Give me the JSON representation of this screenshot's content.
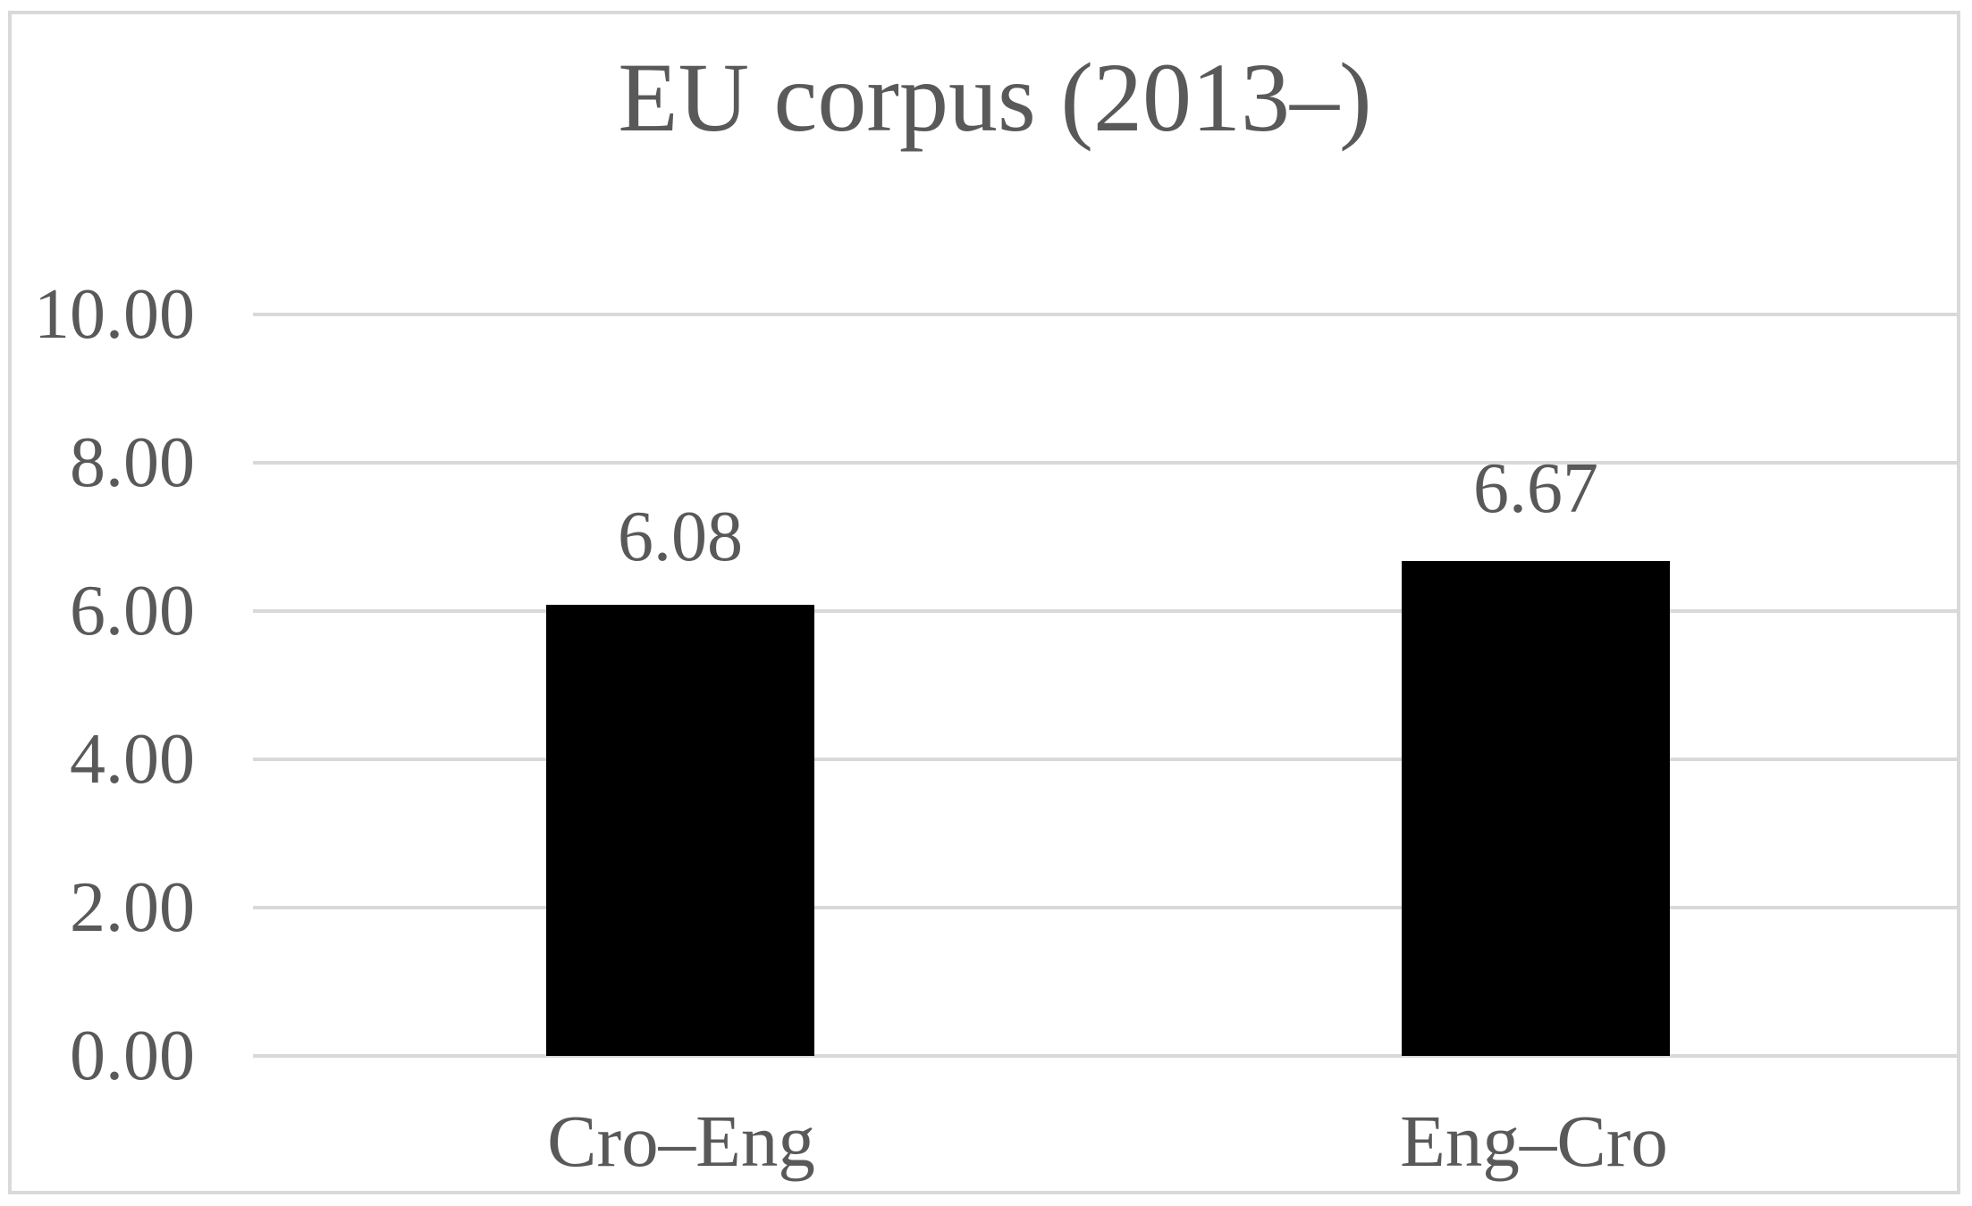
{
  "chart_data": {
    "type": "bar",
    "title": "EU corpus (2013–)",
    "categories": [
      "Cro–Eng",
      "Eng–Cro"
    ],
    "values": [
      6.08,
      6.67
    ],
    "data_labels": [
      "6.08",
      "6.67"
    ],
    "series": [
      {
        "name": "EU corpus (2013–)",
        "values": [
          6.08,
          6.67
        ]
      }
    ],
    "xlabel": "",
    "ylabel": "",
    "ylim": [
      0,
      10
    ],
    "y_tick_step": 2,
    "y_ticks": [
      "10.00",
      "8.00",
      "6.00",
      "4.00",
      "2.00",
      "0.00"
    ],
    "grid": true,
    "legend": "none",
    "colors": {
      "bar": "#000000",
      "text": "#595959",
      "gridline": "#d9d9d9",
      "frame_border": "#d9d9d9",
      "background": "#ffffff"
    }
  }
}
